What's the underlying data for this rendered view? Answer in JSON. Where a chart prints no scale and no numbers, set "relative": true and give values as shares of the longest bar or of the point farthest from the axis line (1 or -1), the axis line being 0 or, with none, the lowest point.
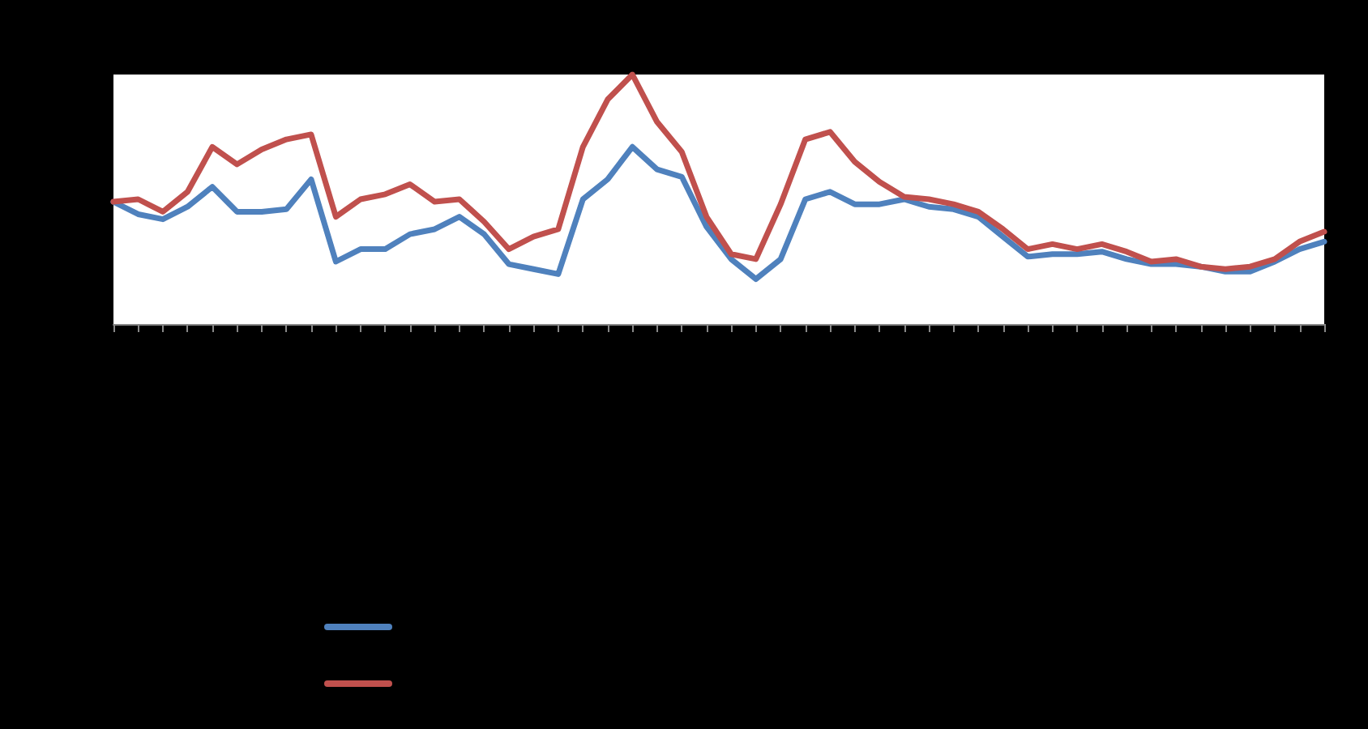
{
  "chart_data": {
    "type": "line",
    "relative": true,
    "grid": false,
    "marker": "none",
    "line_style": "solid",
    "categories": [
      null,
      null,
      null,
      null,
      null,
      null,
      null,
      null,
      null,
      null,
      null,
      null,
      null,
      null,
      null,
      null,
      null,
      null,
      null,
      null,
      null,
      null,
      null,
      null,
      null,
      null,
      null,
      null,
      null,
      null,
      null,
      null,
      null,
      null,
      null,
      null,
      null,
      null,
      null,
      null,
      null,
      null,
      null,
      null,
      null,
      null,
      null,
      null,
      null,
      null
    ],
    "series": [
      {
        "color": "#4f81bd",
        "values": [
          0.49,
          0.44,
          0.42,
          0.47,
          0.55,
          0.45,
          0.45,
          0.46,
          0.58,
          0.25,
          0.3,
          0.3,
          0.36,
          0.38,
          0.43,
          0.36,
          0.24,
          0.22,
          0.2,
          0.5,
          0.58,
          0.71,
          0.62,
          0.59,
          0.39,
          0.26,
          0.18,
          0.26,
          0.5,
          0.53,
          0.48,
          0.48,
          0.5,
          0.47,
          0.46,
          0.43,
          0.35,
          0.27,
          0.28,
          0.28,
          0.29,
          0.26,
          0.24,
          0.24,
          0.23,
          0.21,
          0.21,
          0.25,
          0.3,
          0.33
        ]
      },
      {
        "color": "#c0504d",
        "values": [
          0.49,
          0.5,
          0.45,
          0.53,
          0.71,
          0.64,
          0.7,
          0.74,
          0.76,
          0.43,
          0.5,
          0.52,
          0.56,
          0.49,
          0.5,
          0.41,
          0.3,
          0.35,
          0.38,
          0.71,
          0.9,
          1,
          0.81,
          0.69,
          0.43,
          0.28,
          0.26,
          0.48,
          0.74,
          0.77,
          0.65,
          0.57,
          0.51,
          0.5,
          0.48,
          0.45,
          0.38,
          0.3,
          0.32,
          0.3,
          0.32,
          0.29,
          0.25,
          0.26,
          0.23,
          0.22,
          0.23,
          0.26,
          0.33,
          0.37
        ]
      }
    ]
  }
}
